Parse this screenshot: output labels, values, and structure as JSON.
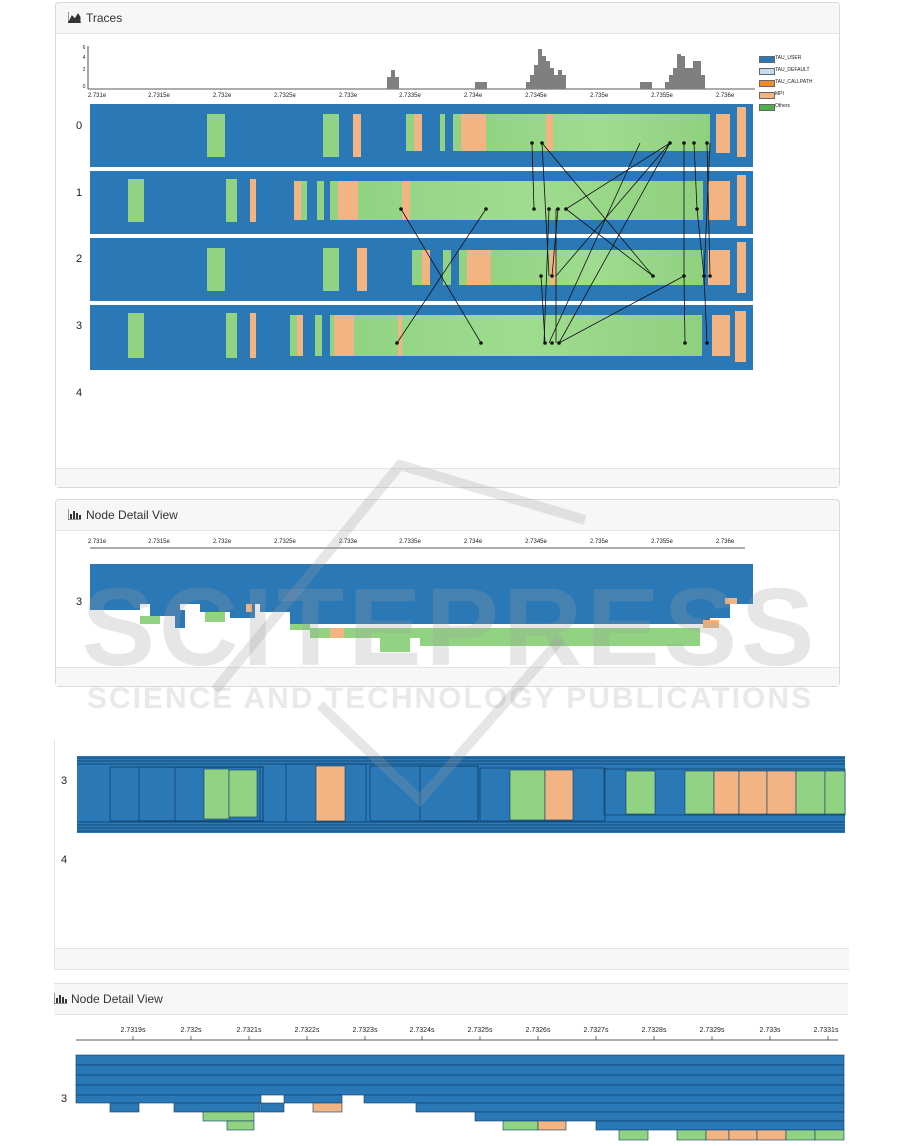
{
  "traces_panel": {
    "title": "Traces",
    "histogram_yticks": [
      "6",
      "4",
      "2",
      "0"
    ],
    "axis_ticks": [
      "2.731e",
      "2.7315e",
      "2.732e",
      "2.7325e",
      "2.733e",
      "2.7335e",
      "2.734e",
      "2.7345e",
      "2.735e",
      "2.7355e",
      "2.736e"
    ],
    "row_labels": [
      "0",
      "1",
      "2",
      "3",
      "4"
    ],
    "legend": [
      {
        "label": "TAU_USER",
        "color": "#2b78b6"
      },
      {
        "label": "TAU_DEFAULT",
        "color": "#c7dbef"
      },
      {
        "label": "TAU_CALLPATH",
        "color": "#f08c2b"
      },
      {
        "label": "MPI",
        "color": "#f2b482"
      },
      {
        "label": "Others",
        "color": "#4db14a"
      }
    ]
  },
  "node_detail_panel": {
    "title": "Node Detail View",
    "axis_ticks": [
      "2.731e",
      "2.7315e",
      "2.732e",
      "2.7325e",
      "2.733e",
      "2.7335e",
      "2.734e",
      "2.7345e",
      "2.735e",
      "2.7355e",
      "2.736e"
    ],
    "row_label": "3"
  },
  "zoomed_traces": {
    "row_labels": [
      "3",
      "4"
    ]
  },
  "zoomed_node_detail": {
    "title": "Node Detail View",
    "axis_ticks": [
      "2.7319s",
      "2.732s",
      "2.7321s",
      "2.7322s",
      "2.7323s",
      "2.7324s",
      "2.7325s",
      "2.7326s",
      "2.7327s",
      "2.7328s",
      "2.7329s",
      "2.733s",
      "2.7331s"
    ],
    "row_label": "3"
  },
  "colors": {
    "tau_user": "#2b78b6",
    "others": "#92d383",
    "mpi": "#f2b482"
  },
  "watermark": {
    "brand": "SCITEPRESS",
    "subtitle": "SCIENCE AND TECHNOLOGY PUBLICATIONS"
  }
}
